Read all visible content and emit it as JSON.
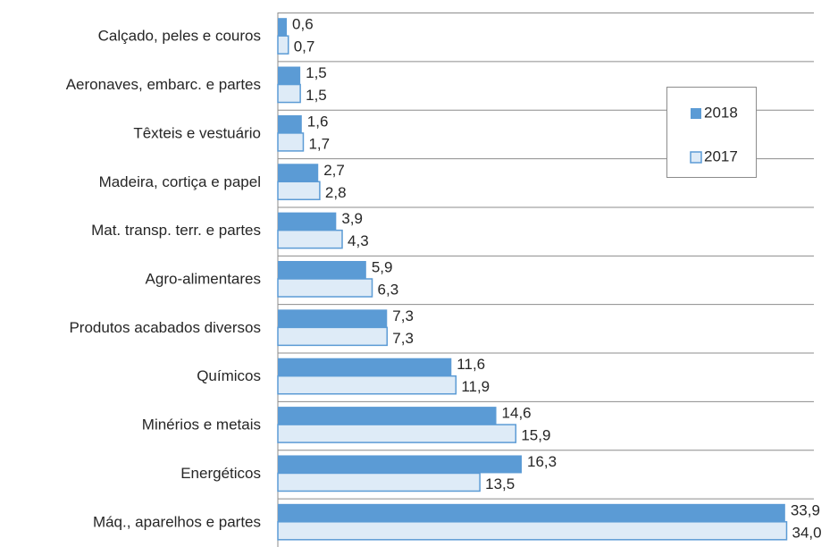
{
  "chart_data": {
    "type": "hbar",
    "categories": [
      "Calçado, peles e couros",
      "Aeronaves, embarc. e partes",
      "Têxteis e vestuário",
      "Madeira, cortiça e papel",
      "Mat. transp. terr. e partes",
      "Agro-alimentares",
      "Produtos acabados diversos",
      "Químicos",
      "Minérios e metais",
      "Energéticos",
      "Máq., aparelhos e partes"
    ],
    "series": [
      {
        "name": "2018",
        "color": "#5b9bd5",
        "values": [
          0.6,
          1.5,
          1.6,
          2.7,
          3.9,
          5.9,
          7.3,
          11.6,
          14.6,
          16.3,
          33.9
        ],
        "value_labels": [
          "0,6",
          "1,5",
          "1,6",
          "2,7",
          "3,9",
          "5,9",
          "7,3",
          "11,6",
          "14,6",
          "16,3",
          "33,9"
        ]
      },
      {
        "name": "2017",
        "color": "#deebf7",
        "values": [
          0.7,
          1.5,
          1.7,
          2.8,
          4.3,
          6.3,
          7.3,
          11.9,
          15.9,
          13.5,
          34.0
        ],
        "value_labels": [
          "0,7",
          "1,5",
          "1,7",
          "2,8",
          "4,3",
          "6,3",
          "7,3",
          "11,9",
          "15,9",
          "13,5",
          "34,0"
        ]
      }
    ],
    "xlim": [
      0,
      36
    ],
    "legend": "upper-right"
  }
}
